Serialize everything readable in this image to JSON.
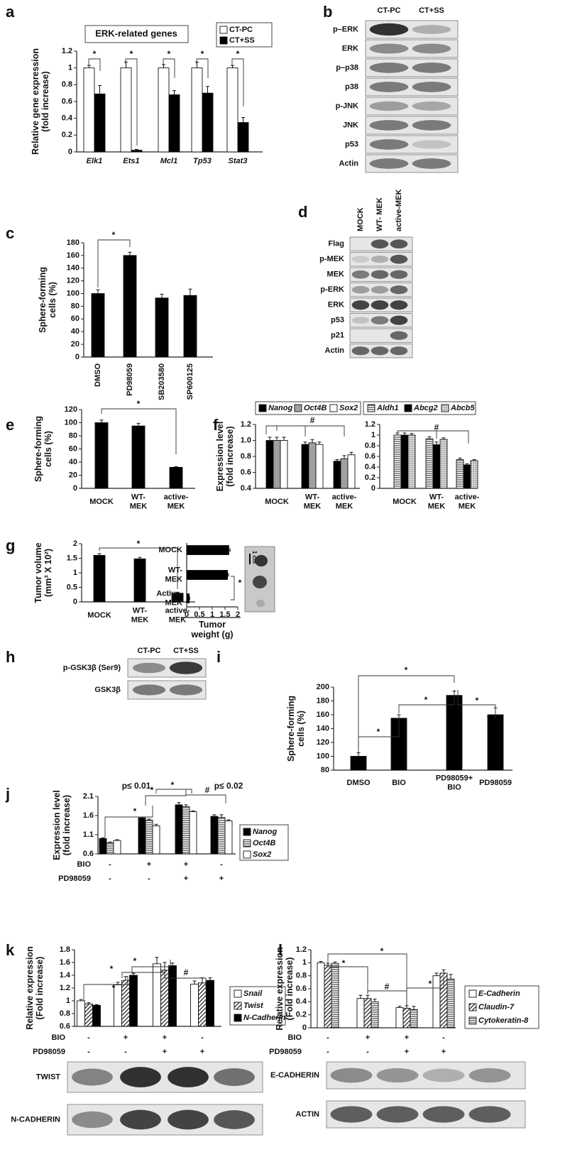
{
  "panels": [
    "a",
    "b",
    "c",
    "d",
    "e",
    "f",
    "g",
    "h",
    "i",
    "j",
    "k",
    "l"
  ],
  "blots": [
    {
      "columns": [
        "CT-PC",
        "CT+SS"
      ],
      "rows": [
        "p–ERK",
        "ERK",
        "p–p38",
        "p38",
        "p-JNK",
        "JNK",
        "p53",
        "Actin"
      ]
    },
    {
      "columns": [
        "MOCK",
        "WT- MEK",
        "active-MEK"
      ],
      "rows": [
        "Flag",
        "p-MEK",
        "MEK",
        "p-ERK",
        "ERK",
        "p53",
        "p21",
        "Actin"
      ]
    },
    {
      "columns": [
        "CT-PC",
        "CT+SS"
      ],
      "rows": [
        "p-GSK3β (Ser9)",
        "GSK3β"
      ]
    },
    {
      "rows": [
        "TWIST",
        "N-CADHERIN"
      ]
    },
    {
      "rows": [
        "E-CADHERIN",
        "ACTIN"
      ]
    }
  ],
  "photo": {
    "scale_label": "1 cm"
  },
  "chart_data": [
    {
      "type": "bar",
      "title": "ERK-related genes",
      "ylabel": "Relative gene expression\n(fold increase)",
      "categories": [
        "Elk1",
        "Ets1",
        "Mcl1",
        "Tp53",
        "Stat3"
      ],
      "series": [
        {
          "name": "CT-PC",
          "color": "#ffffff",
          "values": [
            1,
            1,
            1,
            1,
            1
          ],
          "errors": [
            0.03,
            0.07,
            0.04,
            0.07,
            0.03
          ]
        },
        {
          "name": "CT+SS",
          "color": "#000000",
          "values": [
            0.69,
            0.02,
            0.68,
            0.7,
            0.35
          ],
          "errors": [
            0.1,
            0.01,
            0.05,
            0.08,
            0.06
          ]
        }
      ],
      "ylim": [
        0,
        1.2
      ],
      "yticks": [
        0,
        0.2,
        0.4,
        0.6,
        0.8,
        1,
        1.2
      ],
      "annotations": [
        "*",
        "*",
        "*",
        "*",
        "*"
      ]
    },
    {
      "type": "bar",
      "ylabel": "Sphere-forming\ncells (%)",
      "categories": [
        "DMSO",
        "PD98059",
        "SB203580",
        "SP600125"
      ],
      "values": [
        100,
        160,
        93,
        97
      ],
      "errors": [
        6,
        5,
        6,
        10
      ],
      "color": "#000000",
      "ylim": [
        0,
        180
      ],
      "yticks": [
        0,
        20,
        40,
        60,
        80,
        100,
        120,
        140,
        160,
        180
      ],
      "annotations": [
        "*"
      ]
    },
    {
      "type": "bar",
      "ylabel": "Sphere-forming\ncells (%)",
      "categories": [
        "MOCK",
        "WT-\nMEK",
        "active-\nMEK"
      ],
      "values": [
        100,
        95,
        32
      ],
      "errors": [
        4,
        4,
        1
      ],
      "color": "#000000",
      "ylim": [
        0,
        120
      ],
      "yticks": [
        0,
        20,
        40,
        60,
        80,
        100,
        120
      ],
      "annotations": [
        "*"
      ]
    },
    {
      "type": "bar",
      "ylabel": "Expression level\n(fold increase)",
      "categories": [
        "MOCK",
        "WT-\nMEK",
        "active-\nMEK"
      ],
      "series": [
        {
          "name": "Nanog",
          "color": "#000000",
          "values": [
            1.0,
            0.95,
            0.74
          ],
          "errors": [
            0.04,
            0.03,
            0.02
          ]
        },
        {
          "name": "Oct4B",
          "color": "#a0a0a0",
          "values": [
            1.0,
            0.97,
            0.77
          ],
          "errors": [
            0.04,
            0.04,
            0.04
          ]
        },
        {
          "name": "Sox2",
          "color": "#ffffff",
          "values": [
            1.0,
            0.95,
            0.82
          ],
          "errors": [
            0.04,
            0.03,
            0.03
          ]
        }
      ],
      "ylim": [
        0.4,
        1.2
      ],
      "yticks": [
        0.4,
        0.6,
        0.8,
        {
          "value": 1,
          "label": "1.0"
        },
        1.2
      ],
      "annotations": [
        "#"
      ]
    },
    {
      "type": "bar",
      "categories": [
        "MOCK",
        "WT-\nMEK",
        "active-\nMEK"
      ],
      "series": [
        {
          "name": "Aldh1",
          "color": "#ffffff",
          "hatch": "horizontal",
          "values": [
            1.0,
            0.93,
            0.54
          ],
          "errors": [
            0.04,
            0.04,
            0.03
          ]
        },
        {
          "name": "Abcg2",
          "color": "#000000",
          "values": [
            1.0,
            0.82,
            0.44
          ],
          "errors": [
            0.04,
            0.05,
            0.02
          ]
        },
        {
          "name": "Abcb5",
          "color": "#ffffff",
          "hatch": "dots",
          "values": [
            1.0,
            0.92,
            0.52
          ],
          "errors": [
            0.03,
            0.03,
            0.02
          ]
        }
      ],
      "ylim": [
        0,
        1.2
      ],
      "yticks": [
        0,
        0.2,
        0.4,
        0.6,
        0.8,
        1,
        1.2
      ],
      "annotations": [
        "#"
      ]
    },
    {
      "type": "bar",
      "ylabel": "Tumor  volume\n(mm³ X 10²)",
      "categories": [
        "MOCK",
        "WT-\nMEK",
        "active-\nMEK"
      ],
      "values": [
        1.6,
        1.48,
        0.3
      ],
      "errors": [
        0.06,
        0.05,
        0.02
      ],
      "color": "#000000",
      "ylim": [
        0,
        2
      ],
      "yticks": [
        0,
        0.5,
        1,
        1.5,
        2
      ],
      "annotations": [
        "*"
      ]
    },
    {
      "type": "hbar",
      "xlabel": "Tumor\nweight (g)",
      "categories": [
        "MOCK",
        "WT-\nMEK",
        "Active-\nMEK"
      ],
      "values": [
        1.65,
        1.6,
        0.1
      ],
      "errors": [
        0.05,
        0.04,
        0.02
      ],
      "color": "#000000",
      "xlim": [
        0,
        2
      ],
      "xticks": [
        0,
        0.5,
        1,
        1.5,
        2
      ],
      "annotations": [
        "*"
      ]
    },
    {
      "type": "bar",
      "ylabel": "Sphere-forming\ncells (%)",
      "categories": [
        "DMSO",
        "BIO",
        "PD98059+\nBIO",
        "PD98059"
      ],
      "values": [
        100,
        155,
        188,
        160
      ],
      "errors": [
        5,
        5,
        6,
        10
      ],
      "color": "#000000",
      "ylim": [
        80,
        200
      ],
      "yticks": [
        80,
        100,
        120,
        140,
        160,
        180,
        200
      ],
      "annotations": [
        "*",
        "*",
        "*",
        "*"
      ]
    },
    {
      "type": "bar",
      "ylabel": "Expression level\n(fold increase)",
      "conditions": [
        {
          "name": "BIO",
          "values": [
            "-",
            "+",
            "+",
            "-"
          ]
        },
        {
          "name": "PD98059",
          "values": [
            "-",
            "-",
            "+",
            "+"
          ]
        }
      ],
      "series": [
        {
          "name": "Nanog",
          "color": "#000000",
          "values": [
            1.0,
            1.54,
            1.88,
            1.58
          ],
          "errors": [
            0.02,
            0.02,
            0.06,
            0.04
          ]
        },
        {
          "name": "Oct4B",
          "color": "#ffffff",
          "hatch": "horizontal",
          "values": [
            0.89,
            1.48,
            1.83,
            1.55
          ],
          "errors": [
            0.02,
            0.03,
            0.05,
            0.07
          ]
        },
        {
          "name": "Sox2",
          "color": "#ffffff",
          "values": [
            0.95,
            1.33,
            1.7,
            1.46
          ],
          "errors": [
            0.02,
            0.04,
            0.02,
            0.03
          ]
        }
      ],
      "ylim": [
        0.6,
        2.1
      ],
      "yticks": [
        0.6,
        1.1,
        1.6,
        2.1
      ],
      "annotations": [
        "p≤ 0.01",
        "*",
        "*",
        "*",
        "#",
        "p≤ 0.02"
      ]
    },
    {
      "type": "bar",
      "ylabel": "Relative expression\n(Fold increase)",
      "conditions": [
        {
          "name": "BIO",
          "values": [
            "-",
            "+",
            "+",
            "-"
          ]
        },
        {
          "name": "PD98059",
          "values": [
            "-",
            "-",
            "+",
            "+"
          ]
        }
      ],
      "series": [
        {
          "name": "Snail",
          "color": "#ffffff",
          "values": [
            1.0,
            1.25,
            1.58,
            1.26
          ],
          "errors": [
            0.02,
            0.04,
            0.1,
            0.05
          ]
        },
        {
          "name": "Twist",
          "color": "#ffffff",
          "hatch": "diagonal",
          "values": [
            0.95,
            1.32,
            1.48,
            1.28
          ],
          "errors": [
            0.02,
            0.06,
            0.12,
            0.08
          ]
        },
        {
          "name": "N-Cadherin",
          "color": "#000000",
          "values": [
            0.93,
            1.4,
            1.55,
            1.32
          ],
          "errors": [
            0.01,
            0.03,
            0.04,
            0.04
          ]
        }
      ],
      "ylim": [
        0.6,
        1.8
      ],
      "yticks": [
        0.6,
        0.8,
        1,
        1.2,
        1.4,
        1.6,
        1.8
      ],
      "annotations": [
        "*",
        "*",
        "*",
        "#"
      ]
    },
    {
      "type": "bar",
      "ylabel": "Relative expression\n(Fold increase)",
      "conditions": [
        {
          "name": "BIO",
          "values": [
            "-",
            "+",
            "+",
            "-"
          ]
        },
        {
          "name": "PD98059",
          "values": [
            "-",
            "-",
            "+",
            "+"
          ]
        }
      ],
      "series": [
        {
          "name": "E-Cadherin",
          "color": "#ffffff",
          "values": [
            1.0,
            0.45,
            0.31,
            0.8
          ],
          "errors": [
            0.02,
            0.05,
            0.02,
            0.04
          ]
        },
        {
          "name": "Claudin-7",
          "color": "#ffffff",
          "hatch": "diagonal",
          "values": [
            0.96,
            0.45,
            0.3,
            0.84
          ],
          "errors": [
            0.03,
            0.05,
            0.04,
            0.05
          ]
        },
        {
          "name": "Cytokeratin-8",
          "color": "#ffffff",
          "hatch": "horizontal",
          "values": [
            0.99,
            0.4,
            0.28,
            0.75
          ],
          "errors": [
            0.02,
            0.04,
            0.05,
            0.07
          ]
        }
      ],
      "ylim": [
        0,
        1.2
      ],
      "yticks": [
        0,
        0.2,
        0.4,
        0.6,
        0.8,
        1,
        1.2
      ],
      "annotations": [
        "*",
        "*",
        "#",
        "*"
      ]
    }
  ]
}
